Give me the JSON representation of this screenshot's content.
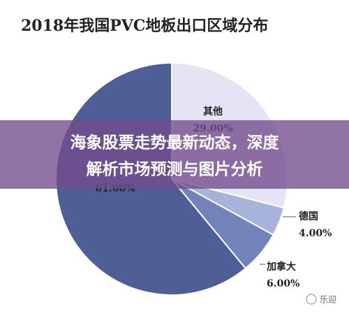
{
  "chart_data": {
    "type": "pie",
    "title": "2018年我国PVC地板出口区域分布",
    "categories": [
      "其他",
      "德国",
      "加拿大",
      null
    ],
    "values": [
      29,
      4,
      6,
      61
    ],
    "value_labels": [
      "29.00%",
      "4.00%",
      "6.00%",
      "61.00%"
    ],
    "colors": [
      "#e4e4f4",
      "#a8b3dc",
      "#7283bc",
      "#4e5e96"
    ]
  },
  "overlay": {
    "lines": [
      "海象股票走势最新动态，深度",
      "解析市场预测与图片分析"
    ]
  },
  "watermark": "乐迎"
}
